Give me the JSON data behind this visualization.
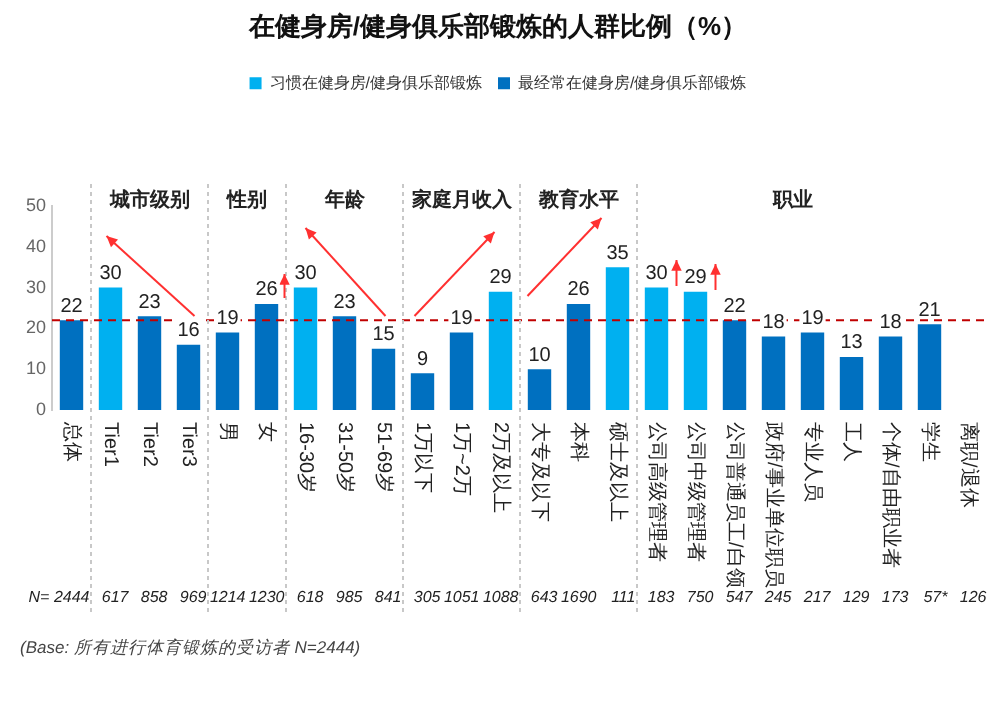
{
  "chart_data": {
    "type": "bar",
    "title": "在健身房/健身俱乐部锻炼的人群比例（%）",
    "categories": [
      "总体",
      "Tier1",
      "Tier2",
      "Tier3",
      "男",
      "女",
      "16-30岁",
      "31-50岁",
      "51-69岁",
      "1万以下",
      "1万~2万",
      "2万及以上",
      "大专及以下",
      "本科",
      "硕士及以上",
      "公司高级管理者",
      "公司中级管理者",
      "公司普通员工/白领",
      "政府/事业单位职员",
      "专业人员",
      "工人",
      "个体/自由职业者",
      "学生",
      "离职/退休"
    ],
    "series": [
      {
        "name": "习惯在健身房/健身俱乐部锻炼",
        "color": "#00b0f0",
        "values": [
          null,
          30,
          null,
          null,
          null,
          null,
          30,
          null,
          null,
          null,
          null,
          29,
          null,
          null,
          35,
          30,
          29,
          null,
          null,
          null,
          null,
          null,
          null,
          null
        ]
      },
      {
        "name": "最经常在健身房/健身俱乐部锻炼",
        "color": "#0070c0",
        "values": [
          22,
          null,
          23,
          16,
          19,
          26,
          null,
          23,
          15,
          9,
          19,
          null,
          10,
          26,
          null,
          null,
          null,
          22,
          18,
          19,
          13,
          18,
          21,
          null
        ]
      }
    ],
    "stacked": true,
    "data_labels": true,
    "ylim": [
      0,
      50
    ],
    "yticks": [
      0,
      10,
      20,
      30,
      40,
      50
    ],
    "grid": false,
    "legend": "top",
    "ref_lines": [
      {
        "axis": "y",
        "value": 22,
        "color": "#c00000",
        "line_style": "dashed"
      }
    ],
    "annotations": [
      "城市级别",
      "性别",
      "年龄",
      "家庭月收入",
      "教育水平",
      "职业",
      "N= 2444",
      "617",
      "858",
      "969",
      "1214",
      "1230",
      "618",
      "985",
      "841",
      "305",
      "1051",
      "1088",
      "643",
      "1690",
      "111",
      "183",
      "750",
      "547",
      "245",
      "217",
      "129",
      "173",
      "57*",
      "126",
      "(Base: 所有进行体育锻炼的受访者 N=2444)"
    ]
  }
}
